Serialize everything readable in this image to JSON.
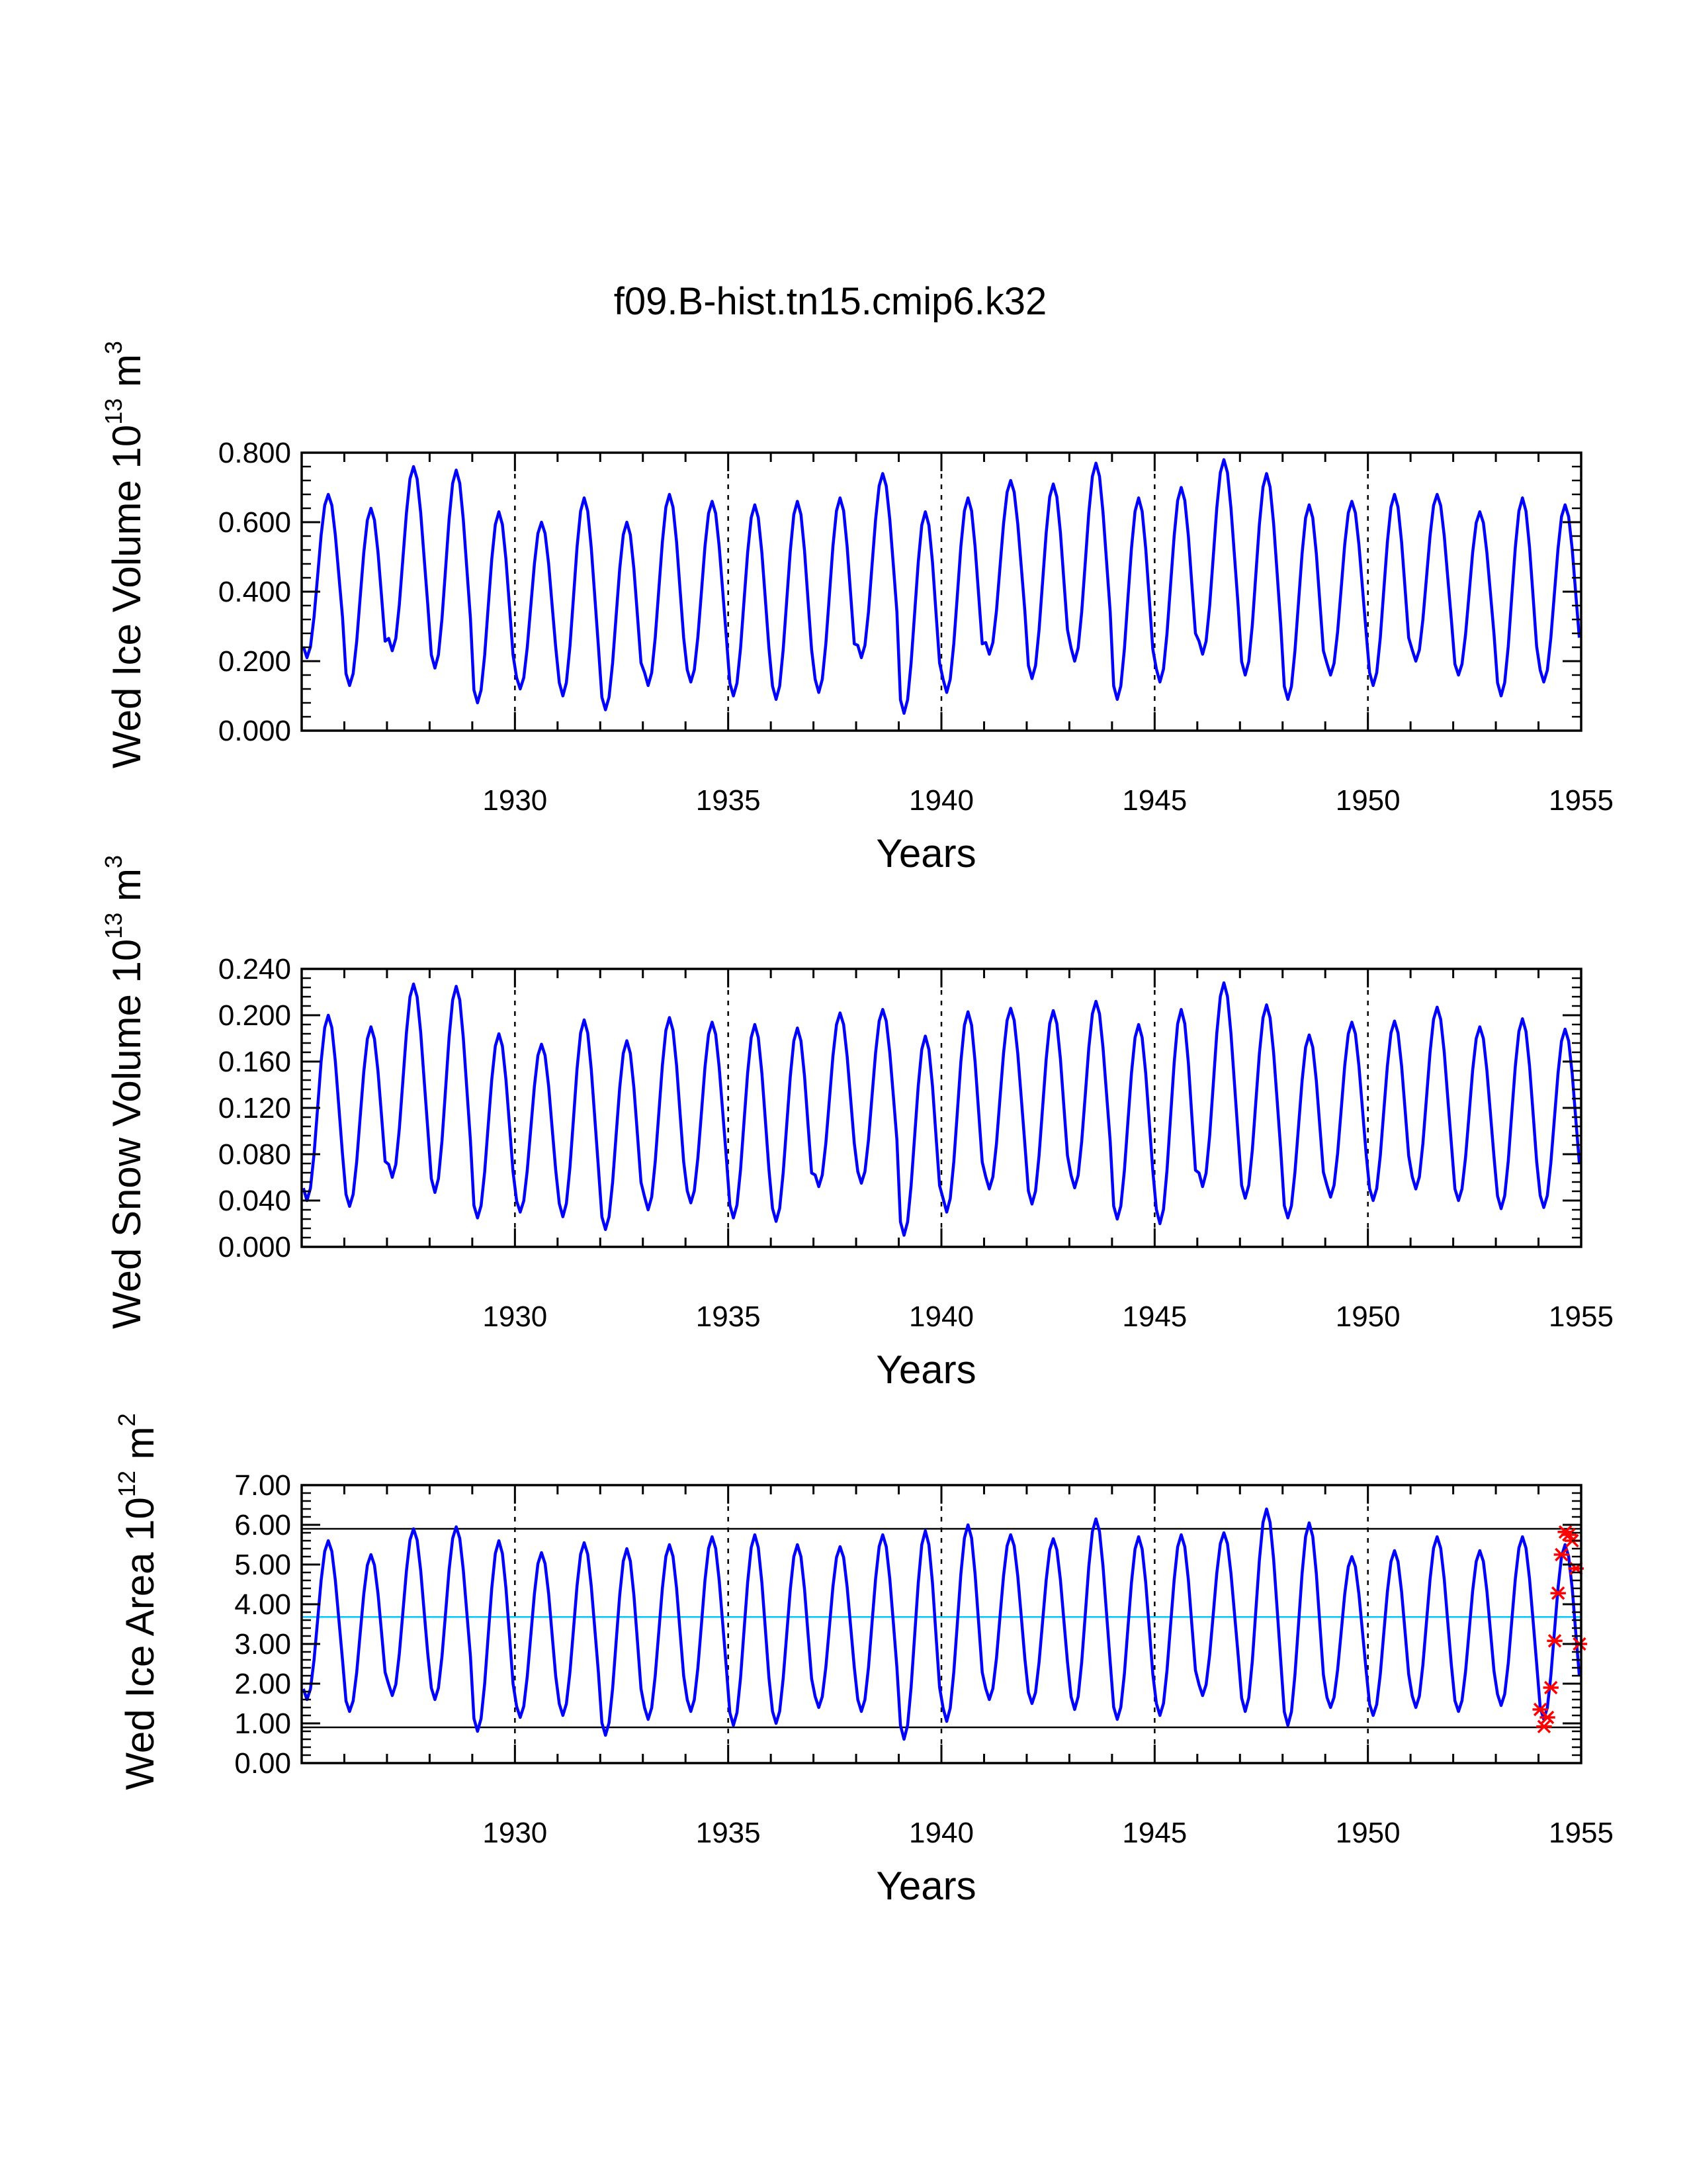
{
  "title": "f09.B-hist.tn15.cmip6.k32",
  "colors": {
    "series": "#0000ff",
    "mean": "#00c8ff",
    "bounds": "#000000",
    "markers": "#ff0000"
  },
  "chart_data": [
    {
      "id": "ice-volume",
      "type": "line",
      "ylabel_main": "Wed Ice Volume 10",
      "ylabel_exp": "13",
      "ylabel_unit": "m",
      "ylabel_unit_exp": "3",
      "xlabel": "Years",
      "xlim": [
        1925,
        1955
      ],
      "ylim": [
        0,
        0.8
      ],
      "ytick_values": [
        0,
        0.2,
        0.4,
        0.6,
        0.8
      ],
      "ytick_labels": [
        "0.000",
        "0.200",
        "0.400",
        "0.600",
        "0.800"
      ],
      "xtick_values": [
        1930,
        1935,
        1940,
        1945,
        1950,
        1955
      ],
      "xtick_labels": [
        "1930",
        "1935",
        "1940",
        "1945",
        "1950",
        "1955"
      ],
      "dashed_vlines": [
        1930,
        1935,
        1940,
        1945,
        1950
      ],
      "series": [
        {
          "name": "Wed Ice Volume",
          "start": 1925.04,
          "step": 0.0833333,
          "cycles": [
            [
              0.21,
              0.68
            ],
            [
              0.13,
              0.64
            ],
            [
              0.23,
              0.76
            ],
            [
              0.18,
              0.75
            ],
            [
              0.08,
              0.63
            ],
            [
              0.12,
              0.6
            ],
            [
              0.1,
              0.67
            ],
            [
              0.06,
              0.6
            ],
            [
              0.13,
              0.68
            ],
            [
              0.14,
              0.66
            ],
            [
              0.1,
              0.65
            ],
            [
              0.09,
              0.66
            ],
            [
              0.11,
              0.67
            ],
            [
              0.21,
              0.74
            ],
            [
              0.05,
              0.63
            ],
            [
              0.11,
              0.67
            ],
            [
              0.22,
              0.72
            ],
            [
              0.15,
              0.71
            ],
            [
              0.2,
              0.77
            ],
            [
              0.09,
              0.67
            ],
            [
              0.14,
              0.7
            ],
            [
              0.22,
              0.78
            ],
            [
              0.16,
              0.74
            ],
            [
              0.09,
              0.65
            ],
            [
              0.16,
              0.66
            ],
            [
              0.13,
              0.68
            ],
            [
              0.2,
              0.68
            ],
            [
              0.16,
              0.63
            ],
            [
              0.1,
              0.67
            ],
            [
              0.14,
              0.65
            ]
          ]
        }
      ]
    },
    {
      "id": "snow-volume",
      "type": "line",
      "ylabel_main": "Wed Snow Volume 10",
      "ylabel_exp": "13",
      "ylabel_unit": "m",
      "ylabel_unit_exp": "3",
      "xlabel": "Years",
      "xlim": [
        1925,
        1955
      ],
      "ylim": [
        0,
        0.24
      ],
      "ytick_values": [
        0,
        0.04,
        0.08,
        0.12,
        0.16,
        0.2,
        0.24
      ],
      "ytick_labels": [
        "0.000",
        "0.040",
        "0.080",
        "0.120",
        "0.160",
        "0.200",
        "0.240"
      ],
      "xtick_values": [
        1930,
        1935,
        1940,
        1945,
        1950,
        1955
      ],
      "xtick_labels": [
        "1930",
        "1935",
        "1940",
        "1945",
        "1950",
        "1955"
      ],
      "dashed_vlines": [
        1930,
        1935,
        1940,
        1945,
        1950
      ],
      "series": [
        {
          "name": "Wed Snow Volume",
          "start": 1925.04,
          "step": 0.0833333,
          "cycles": [
            [
              0.04,
              0.2
            ],
            [
              0.035,
              0.19
            ],
            [
              0.06,
              0.227
            ],
            [
              0.047,
              0.225
            ],
            [
              0.025,
              0.184
            ],
            [
              0.03,
              0.175
            ],
            [
              0.026,
              0.196
            ],
            [
              0.015,
              0.178
            ],
            [
              0.032,
              0.198
            ],
            [
              0.038,
              0.194
            ],
            [
              0.025,
              0.192
            ],
            [
              0.022,
              0.189
            ],
            [
              0.052,
              0.202
            ],
            [
              0.055,
              0.205
            ],
            [
              0.01,
              0.182
            ],
            [
              0.03,
              0.203
            ],
            [
              0.05,
              0.206
            ],
            [
              0.037,
              0.204
            ],
            [
              0.051,
              0.212
            ],
            [
              0.024,
              0.192
            ],
            [
              0.02,
              0.205
            ],
            [
              0.052,
              0.228
            ],
            [
              0.042,
              0.209
            ],
            [
              0.025,
              0.183
            ],
            [
              0.043,
              0.194
            ],
            [
              0.04,
              0.195
            ],
            [
              0.05,
              0.207
            ],
            [
              0.04,
              0.19
            ],
            [
              0.033,
              0.197
            ],
            [
              0.034,
              0.188
            ]
          ]
        }
      ]
    },
    {
      "id": "ice-area",
      "type": "line",
      "ylabel_main": "Wed Ice Area 10",
      "ylabel_exp": "12",
      "ylabel_unit": "m",
      "ylabel_unit_exp": "2",
      "xlabel": "Years",
      "xlim": [
        1925,
        1955
      ],
      "ylim": [
        0,
        7
      ],
      "ytick_values": [
        0,
        1,
        2,
        3,
        4,
        5,
        6,
        7
      ],
      "ytick_labels": [
        "0.00",
        "1.00",
        "2.00",
        "3.00",
        "4.00",
        "5.00",
        "6.00",
        "7.00"
      ],
      "xtick_values": [
        1930,
        1935,
        1940,
        1945,
        1950,
        1955
      ],
      "xtick_labels": [
        "1930",
        "1935",
        "1940",
        "1945",
        "1950",
        "1955"
      ],
      "dashed_vlines": [
        1930,
        1935,
        1940,
        1945,
        1950
      ],
      "hlines": [
        {
          "name": "mean",
          "value": 3.68,
          "color": "#00c8ff"
        },
        {
          "name": "upper",
          "value": 5.9,
          "color": "#000000"
        },
        {
          "name": "lower",
          "value": 0.9,
          "color": "#000000"
        }
      ],
      "series": [
        {
          "name": "Wed Ice Area",
          "start": 1925.04,
          "step": 0.0833333,
          "cycles": [
            [
              1.6,
              5.6
            ],
            [
              1.3,
              5.25
            ],
            [
              1.7,
              5.9
            ],
            [
              1.6,
              5.95
            ],
            [
              0.8,
              5.6
            ],
            [
              1.15,
              5.3
            ],
            [
              1.2,
              5.55
            ],
            [
              0.7,
              5.4
            ],
            [
              1.1,
              5.5
            ],
            [
              1.3,
              5.7
            ],
            [
              0.95,
              5.75
            ],
            [
              1.0,
              5.5
            ],
            [
              1.4,
              5.45
            ],
            [
              1.3,
              5.75
            ],
            [
              0.6,
              5.85
            ],
            [
              1.05,
              6.0
            ],
            [
              1.6,
              5.75
            ],
            [
              1.5,
              5.65
            ],
            [
              1.35,
              6.15
            ],
            [
              1.1,
              5.7
            ],
            [
              1.2,
              5.75
            ],
            [
              1.7,
              5.8
            ],
            [
              1.3,
              6.4
            ],
            [
              0.95,
              6.05
            ],
            [
              1.4,
              5.2
            ],
            [
              1.2,
              5.35
            ],
            [
              1.4,
              5.7
            ],
            [
              1.3,
              5.35
            ],
            [
              1.45,
              5.7
            ],
            [
              1.1,
              5.5
            ]
          ]
        }
      ],
      "markers": [
        {
          "x": 1954.04,
          "y": 1.35
        },
        {
          "x": 1954.13,
          "y": 0.92
        },
        {
          "x": 1954.21,
          "y": 1.15
        },
        {
          "x": 1954.29,
          "y": 1.9
        },
        {
          "x": 1954.38,
          "y": 3.08
        },
        {
          "x": 1954.46,
          "y": 4.28
        },
        {
          "x": 1954.54,
          "y": 5.25
        },
        {
          "x": 1954.63,
          "y": 5.82
        },
        {
          "x": 1954.71,
          "y": 5.75
        },
        {
          "x": 1954.79,
          "y": 5.6
        },
        {
          "x": 1954.88,
          "y": 4.9
        },
        {
          "x": 1954.96,
          "y": 3.0
        }
      ]
    }
  ]
}
